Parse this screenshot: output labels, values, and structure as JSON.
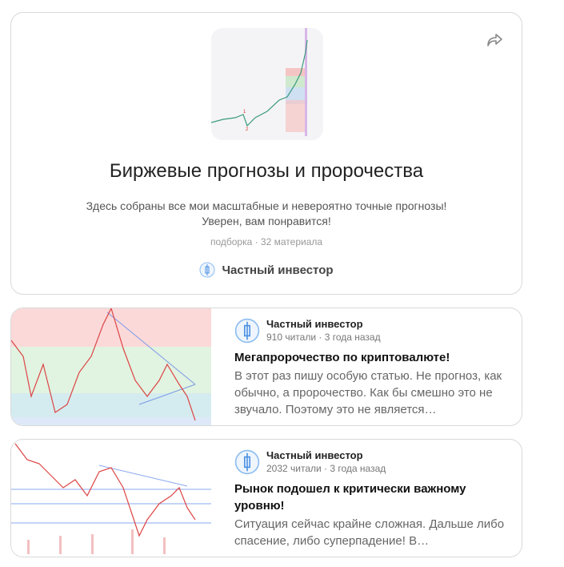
{
  "collection": {
    "title": "Биржевые прогнозы и пророчества",
    "description_lines": [
      "Здесь собраны все мои масштабные и невероятно точные прогнозы!",
      "Уверен, вам понравится!"
    ],
    "meta": "подборка · 32 материала",
    "author": "Частный инвестор",
    "share_icon": "share-arrow-icon"
  },
  "articles": [
    {
      "author": "Частный инвестор",
      "meta": "910 читали · 3 года назад",
      "title": "Мегапророчество по криптовалюте!",
      "snippet": "В этот раз пишу особую статью. Не прогноз, как обычно, а пророчество. Как бы смешно это не звучало. Поэтому это не является…"
    },
    {
      "author": "Частный инвестор",
      "meta": "2032 читали · 3 года назад",
      "title": "Рынок подошел к критически важному уровню!",
      "snippet": "Ситуация сейчас крайне сложная. Дальше либо спасение, либо суперпадение! В…"
    }
  ],
  "colors": {
    "accent": "#4a90e2"
  }
}
